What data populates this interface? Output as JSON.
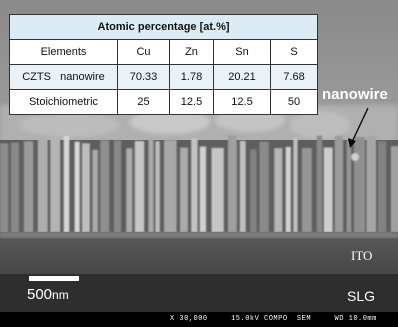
{
  "table": {
    "title": "Atomic percentage [at.%]",
    "columns": [
      "Elements",
      "Cu",
      "Zn",
      "Sn",
      "S"
    ],
    "rows": [
      [
        "CZTS   nanowire",
        "70.33",
        "1.78",
        "20.21",
        "7.68"
      ],
      [
        "Stoichiometric",
        "25",
        "12.5",
        "12.5",
        "50"
      ]
    ]
  },
  "labels": {
    "nanowire": "nanowire",
    "ito": "ITO",
    "slg": "SLG",
    "scale_value": "500",
    "scale_unit": "nm",
    "footer": "X 30,000     15.0kV COMPO  SEM     WD 10.0mm"
  },
  "colors": {
    "table_header_bg": "#dcecf4",
    "label_text": "#ffffff",
    "ito_layer": "#505050",
    "slg_layer": "#2e2e2e"
  }
}
